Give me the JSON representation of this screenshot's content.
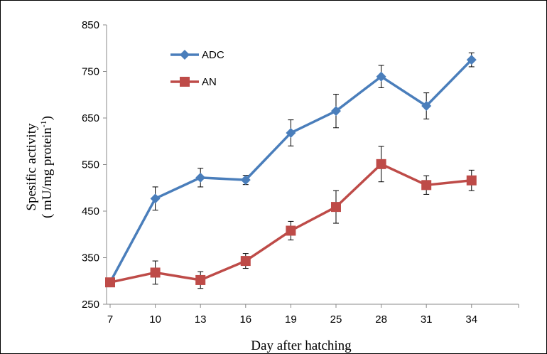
{
  "chart_data": {
    "type": "line",
    "title": "",
    "xlabel": "Day after hatching",
    "ylabel_line1": "Spesific activity",
    "ylabel_line2_prefix": "( mU/mg protein",
    "ylabel_line2_sup": "-1",
    "ylabel_line2_suffix": ")",
    "categories": [
      "7",
      "10",
      "13",
      "16",
      "19",
      "25",
      "28",
      "31",
      "34"
    ],
    "ylim": [
      250,
      850
    ],
    "yticks": [
      "250",
      "350",
      "450",
      "550",
      "650",
      "750",
      "850"
    ],
    "grid": false,
    "legend_position": "top-left",
    "series": [
      {
        "name": "ADC",
        "color": "#4A7EBB",
        "marker": "diamond",
        "values": [
          297,
          477,
          522,
          517,
          618,
          665,
          739,
          676,
          775
        ],
        "errors": [
          8,
          25,
          20,
          10,
          28,
          36,
          24,
          28,
          15
        ]
      },
      {
        "name": "AN",
        "color": "#BE4B48",
        "marker": "square",
        "values": [
          297,
          318,
          302,
          343,
          408,
          459,
          551,
          506,
          516
        ],
        "errors": [
          8,
          25,
          18,
          16,
          20,
          35,
          38,
          20,
          22
        ]
      }
    ]
  }
}
